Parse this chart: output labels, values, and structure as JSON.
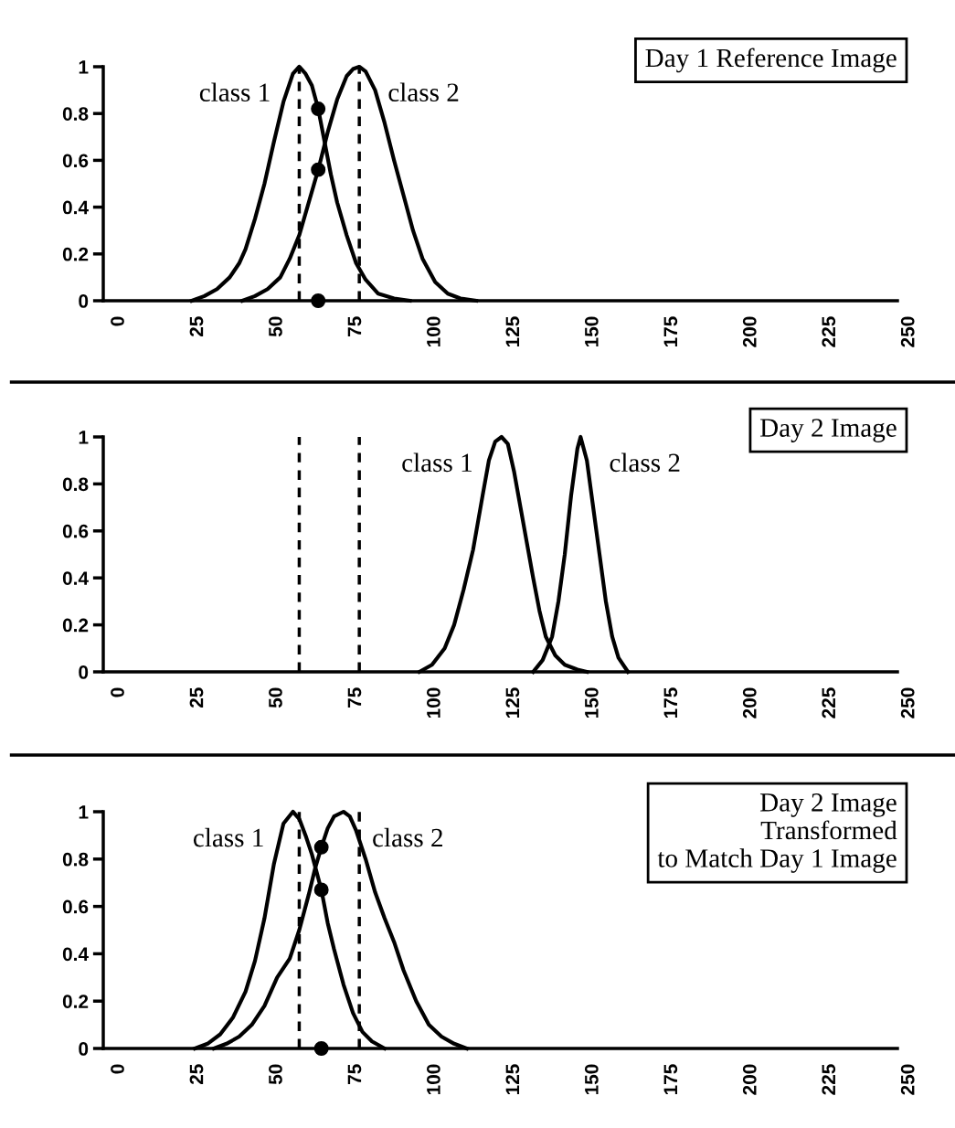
{
  "chart_data": [
    {
      "type": "line",
      "title": "Day 1 Reference Image",
      "xlim": [
        -5,
        250
      ],
      "xticks": [
        0,
        25,
        50,
        75,
        100,
        125,
        150,
        175,
        200,
        225,
        250
      ],
      "ylim": [
        0,
        1
      ],
      "yticks": [
        0,
        0.2,
        0.4,
        0.6,
        0.8,
        1
      ],
      "grid": false,
      "legend": false,
      "marker": "none",
      "line_style": "solid",
      "ref_lines": [
        {
          "axis": "x",
          "value": 57,
          "line_style": "dashed",
          "color": "#000000"
        },
        {
          "axis": "x",
          "value": 76,
          "line_style": "dashed",
          "color": "#000000"
        }
      ],
      "series": [
        {
          "name": "class 1",
          "color": "#000000",
          "x": [
            23,
            27,
            31,
            35,
            38,
            40,
            43,
            46,
            49,
            52,
            55,
            57,
            59,
            61,
            63,
            65,
            67,
            69,
            72,
            75,
            78,
            82,
            87,
            92
          ],
          "values": [
            0,
            0.02,
            0.05,
            0.1,
            0.16,
            0.22,
            0.35,
            0.5,
            0.68,
            0.85,
            0.97,
            1.0,
            0.97,
            0.92,
            0.82,
            0.68,
            0.54,
            0.42,
            0.28,
            0.16,
            0.09,
            0.03,
            0.01,
            0
          ]
        },
        {
          "name": "class 2",
          "color": "#000000",
          "x": [
            39,
            43,
            47,
            51,
            54,
            57,
            60,
            63,
            66,
            69,
            72,
            74,
            76,
            78,
            81,
            84,
            87,
            90,
            93,
            96,
            100,
            104,
            108,
            113
          ],
          "values": [
            0,
            0.02,
            0.05,
            0.1,
            0.18,
            0.28,
            0.42,
            0.56,
            0.72,
            0.86,
            0.96,
            0.99,
            1.0,
            0.98,
            0.9,
            0.76,
            0.6,
            0.45,
            0.3,
            0.18,
            0.08,
            0.03,
            0.01,
            0
          ]
        },
        {
          "type": "scatter",
          "marker": "circle",
          "color": "#000000",
          "x": [
            63,
            63,
            63
          ],
          "values": [
            0.82,
            0.56,
            0
          ]
        }
      ]
    },
    {
      "type": "line",
      "title": "Day 2 Image",
      "xlim": [
        -5,
        250
      ],
      "xticks": [
        0,
        25,
        50,
        75,
        100,
        125,
        150,
        175,
        200,
        225,
        250
      ],
      "ylim": [
        0,
        1
      ],
      "yticks": [
        0,
        0.2,
        0.4,
        0.6,
        0.8,
        1
      ],
      "grid": false,
      "legend": false,
      "marker": "none",
      "line_style": "solid",
      "ref_lines": [
        {
          "axis": "x",
          "value": 57,
          "line_style": "dashed",
          "color": "#000000"
        },
        {
          "axis": "x",
          "value": 76,
          "line_style": "dashed",
          "color": "#000000"
        }
      ],
      "series": [
        {
          "name": "class 1",
          "color": "#000000",
          "x": [
            95,
            99,
            103,
            106,
            109,
            112,
            115,
            117,
            119,
            121,
            123,
            125,
            127,
            129,
            131,
            133,
            135,
            138,
            141,
            145,
            148
          ],
          "values": [
            0,
            0.03,
            0.1,
            0.2,
            0.35,
            0.52,
            0.75,
            0.9,
            0.98,
            1.0,
            0.97,
            0.85,
            0.7,
            0.55,
            0.4,
            0.26,
            0.15,
            0.07,
            0.03,
            0.01,
            0
          ]
        },
        {
          "name": "class 2",
          "color": "#000000",
          "x": [
            131,
            134,
            137,
            139,
            141,
            143,
            145,
            146,
            148,
            150,
            152,
            154,
            156,
            158,
            161
          ],
          "values": [
            0,
            0.05,
            0.15,
            0.3,
            0.5,
            0.75,
            0.95,
            1.0,
            0.9,
            0.7,
            0.5,
            0.3,
            0.15,
            0.06,
            0
          ]
        }
      ]
    },
    {
      "type": "line",
      "title": "Day 2 Image\nTransformed\nto Match Day 1 Image",
      "xlim": [
        -5,
        250
      ],
      "xticks": [
        0,
        25,
        50,
        75,
        100,
        125,
        150,
        175,
        200,
        225,
        250
      ],
      "ylim": [
        0,
        1
      ],
      "yticks": [
        0,
        0.2,
        0.4,
        0.6,
        0.8,
        1
      ],
      "grid": false,
      "legend": false,
      "marker": "none",
      "line_style": "solid",
      "ref_lines": [
        {
          "axis": "x",
          "value": 57,
          "line_style": "dashed",
          "color": "#000000"
        },
        {
          "axis": "x",
          "value": 76,
          "line_style": "dashed",
          "color": "#000000"
        }
      ],
      "series": [
        {
          "name": "class 1",
          "color": "#000000",
          "x": [
            24,
            28,
            32,
            36,
            40,
            43,
            46,
            49,
            52,
            55,
            57,
            59,
            61,
            64,
            66,
            68,
            71,
            74,
            77,
            80,
            84
          ],
          "values": [
            0,
            0.02,
            0.06,
            0.13,
            0.24,
            0.37,
            0.55,
            0.78,
            0.95,
            1.0,
            0.97,
            0.9,
            0.82,
            0.67,
            0.53,
            0.42,
            0.27,
            0.15,
            0.07,
            0.03,
            0
          ]
        },
        {
          "name": "class 2",
          "color": "#000000",
          "x": [
            30,
            34,
            38,
            42,
            46,
            50,
            54,
            57,
            60,
            62,
            64,
            66,
            68,
            71,
            73,
            75,
            78,
            81,
            84,
            87,
            90,
            94,
            98,
            102,
            106,
            110
          ],
          "values": [
            0,
            0.02,
            0.05,
            0.1,
            0.18,
            0.3,
            0.38,
            0.5,
            0.65,
            0.76,
            0.85,
            0.93,
            0.98,
            1.0,
            0.98,
            0.92,
            0.8,
            0.66,
            0.55,
            0.45,
            0.33,
            0.2,
            0.1,
            0.05,
            0.02,
            0
          ]
        },
        {
          "type": "scatter",
          "marker": "circle",
          "color": "#000000",
          "x": [
            64,
            64,
            64
          ],
          "values": [
            0.85,
            0.67,
            0
          ]
        }
      ]
    }
  ]
}
